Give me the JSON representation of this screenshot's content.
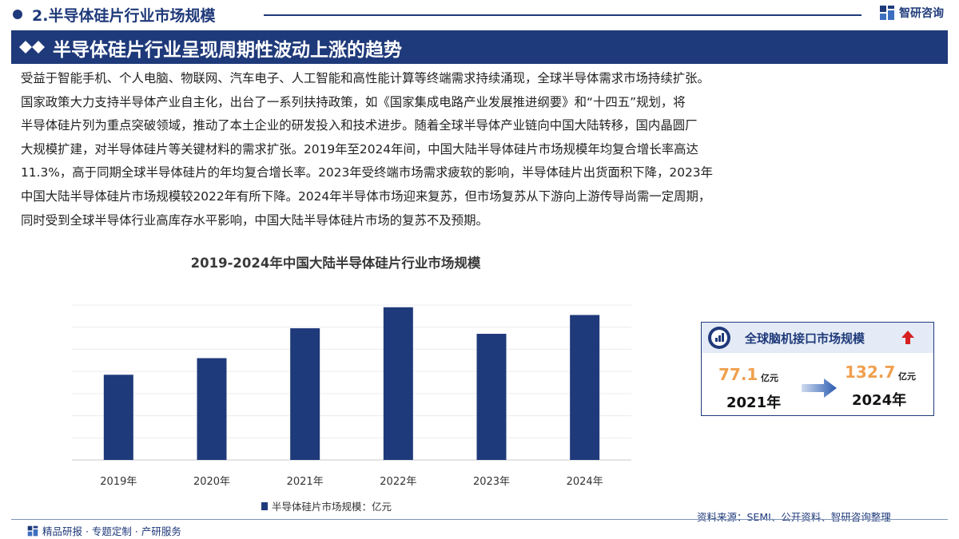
{
  "header": {
    "section_title": "2.半导体硅片行业市场规模",
    "brand": "智研咨询"
  },
  "title_bar": {
    "heading": "半导体硅片行业呈现周期性波动上涨的趋势"
  },
  "paragraph_lines": [
    "受益于智能手机、个人电脑、物联网、汽车电子、人工智能和高性能计算等终端需求持续涌现，全球半导体需求市场持续扩张。",
    "国家政策大力支持半导体产业自主化，出台了一系列扶持政策，如《国家集成电路产业发展推进纲要》和“十四五”规划，将",
    "半导体硅片列为重点突破领域，推动了本土企业的研发投入和技术进步。随着全球半导体产业链向中国大陆转移，国内晶圆厂",
    "大规模扩建，对半导体硅片等关键材料的需求扩张。2019年至2024年间，中国大陆半导体硅片市场规模年均复合增长率高达",
    "11.3%，高于同期全球半导体硅片的年均复合增长率。2023年受终端市场需求疲软的影响，半导体硅片出货面积下降，2023年",
    "中国大陆半导体硅片市场规模较2022年有所下降。2024年半导体市场迎来复苏，但市场复苏从下游向上游传导尚需一定周期，",
    "同时受到全球半导体行业高库存水平影响，中国大陆半导体硅片市场的复苏不及预期。"
  ],
  "chart_data": {
    "type": "bar",
    "title": "2019-2024年中国大陆半导体硅片行业市场规模",
    "categories": [
      "2019年",
      "2020年",
      "2021年",
      "2022年",
      "2023年",
      "2024年"
    ],
    "series": [
      {
        "name": "半导体硅片市场规模：亿元",
        "values": [
          77,
          92,
          119,
          138,
          114,
          131
        ]
      }
    ],
    "ylim": [
      0,
      140
    ],
    "grid": true,
    "legend": "bottom",
    "color": "#1f3a7a"
  },
  "card": {
    "title": "全球脑机接口市场规模",
    "value_start": "77.1",
    "value_end": "132.7",
    "unit": "亿元",
    "year_start": "2021年",
    "year_end": "2024年",
    "accent_color": "#f0a050",
    "trend_icon": "up-arrow-icon"
  },
  "footer": {
    "left": "精品研报 · 专题定制 · 产研服务",
    "source": "资料来源：SEMI、公开资料、智研咨询整理"
  },
  "colors": {
    "brand_navy": "#1f3a7a",
    "up_red": "#d62020"
  }
}
